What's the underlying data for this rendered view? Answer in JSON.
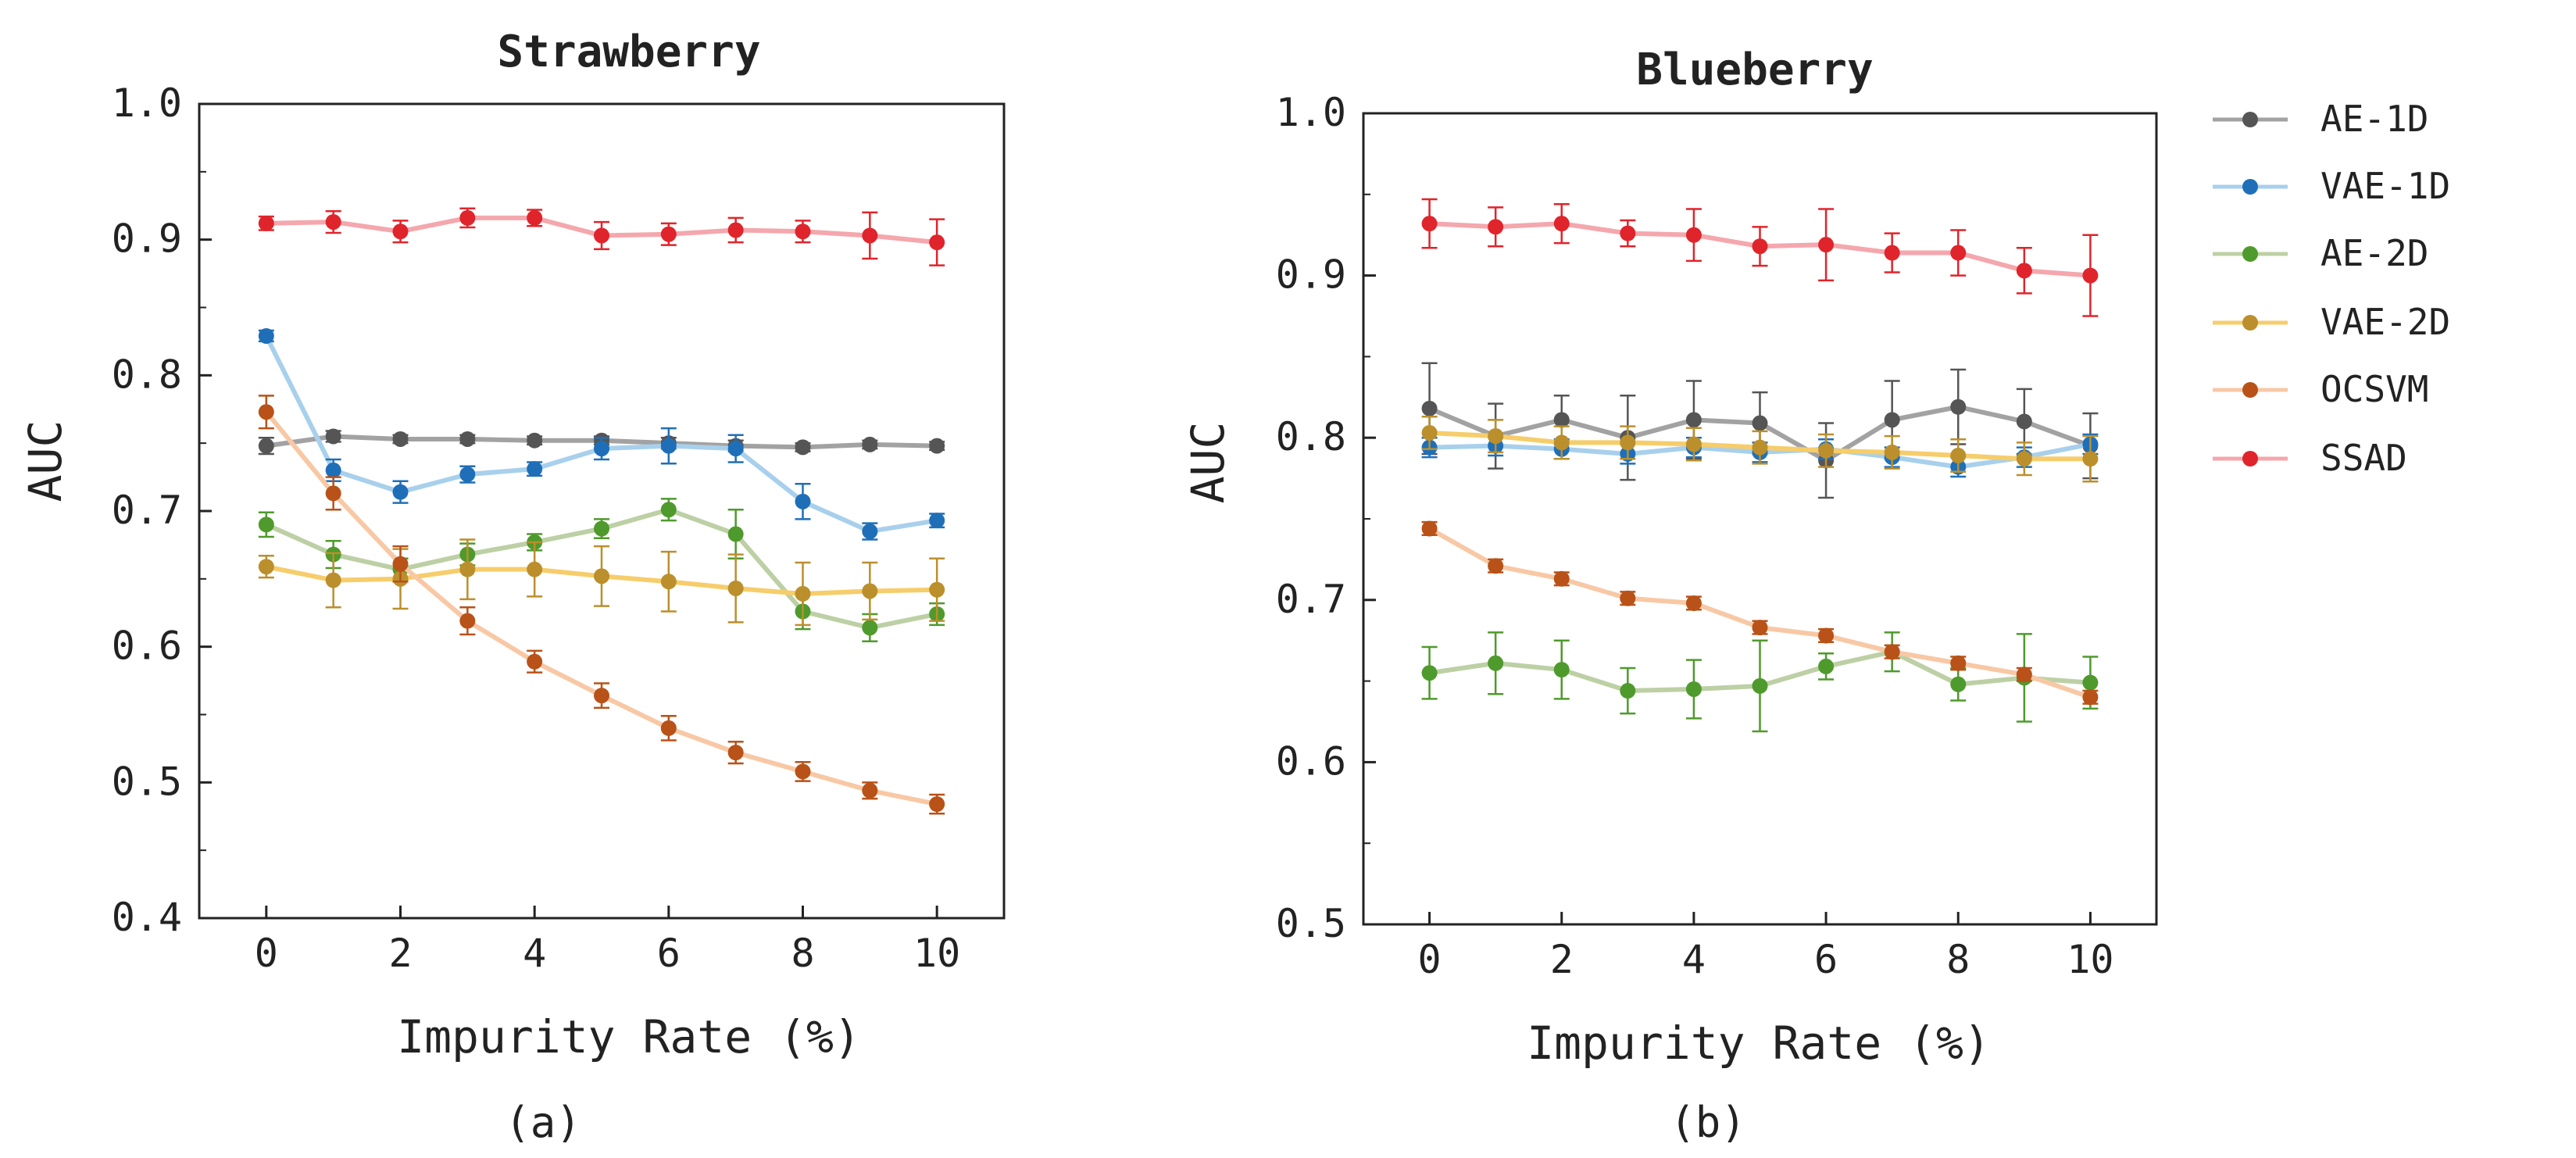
{
  "chart_data": [
    {
      "type": "line",
      "title": "Strawberry",
      "xlabel": "Impurity Rate (%)",
      "ylabel": "AUC",
      "caption": "(a)",
      "xlim": [
        -1,
        11
      ],
      "ylim": [
        0.4,
        1.0
      ],
      "xticks": [
        "0",
        "2",
        "4",
        "6",
        "8",
        "10"
      ],
      "yticks": [
        "0.4",
        "0.5",
        "0.6",
        "0.7",
        "0.8",
        "0.9",
        "1.0"
      ],
      "x": [
        0,
        1,
        2,
        3,
        4,
        5,
        6,
        7,
        8,
        9,
        10
      ],
      "series": [
        {
          "name": "AE-1D",
          "values": [
            0.748,
            0.755,
            0.753,
            0.753,
            0.752,
            0.752,
            0.75,
            0.748,
            0.747,
            0.749,
            0.748
          ],
          "errors": [
            0.006,
            0.004,
            0.003,
            0.003,
            0.003,
            0.003,
            0.004,
            0.004,
            0.003,
            0.003,
            0.003
          ]
        },
        {
          "name": "VAE-1D",
          "values": [
            0.829,
            0.73,
            0.714,
            0.727,
            0.731,
            0.746,
            0.748,
            0.746,
            0.707,
            0.685,
            0.693
          ],
          "errors": [
            0.004,
            0.008,
            0.008,
            0.006,
            0.005,
            0.008,
            0.013,
            0.01,
            0.013,
            0.006,
            0.005
          ]
        },
        {
          "name": "AE-2D",
          "values": [
            0.69,
            0.668,
            0.657,
            0.668,
            0.677,
            0.687,
            0.701,
            0.683,
            0.626,
            0.614,
            0.624
          ],
          "errors": [
            0.009,
            0.01,
            0.008,
            0.008,
            0.006,
            0.007,
            0.008,
            0.018,
            0.013,
            0.01,
            0.008
          ]
        },
        {
          "name": "VAE-2D",
          "values": [
            0.659,
            0.649,
            0.65,
            0.657,
            0.657,
            0.652,
            0.648,
            0.643,
            0.639,
            0.641,
            0.642
          ],
          "errors": [
            0.008,
            0.02,
            0.022,
            0.022,
            0.02,
            0.022,
            0.022,
            0.025,
            0.023,
            0.021,
            0.023
          ]
        },
        {
          "name": "OCSVM",
          "values": [
            0.773,
            0.713,
            0.661,
            0.619,
            0.589,
            0.564,
            0.54,
            0.522,
            0.508,
            0.494,
            0.484
          ],
          "errors": [
            0.012,
            0.012,
            0.013,
            0.01,
            0.008,
            0.009,
            0.009,
            0.008,
            0.007,
            0.006,
            0.007
          ]
        },
        {
          "name": "SSAD",
          "values": [
            0.912,
            0.913,
            0.906,
            0.916,
            0.916,
            0.903,
            0.904,
            0.907,
            0.906,
            0.903,
            0.898
          ],
          "errors": [
            0.005,
            0.008,
            0.008,
            0.007,
            0.006,
            0.01,
            0.008,
            0.009,
            0.008,
            0.017,
            0.017
          ]
        }
      ]
    },
    {
      "type": "line",
      "title": "Blueberry",
      "xlabel": "Impurity Rate (%)",
      "ylabel": "AUC",
      "caption": "(b)",
      "xlim": [
        -1,
        11
      ],
      "ylim": [
        0.5,
        1.0
      ],
      "xticks": [
        "0",
        "2",
        "4",
        "6",
        "8",
        "10"
      ],
      "yticks": [
        "0.5",
        "0.6",
        "0.7",
        "0.8",
        "0.9",
        "1.0"
      ],
      "x": [
        0,
        1,
        2,
        3,
        4,
        5,
        6,
        7,
        8,
        9,
        10
      ],
      "series": [
        {
          "name": "AE-1D",
          "values": [
            0.818,
            0.801,
            0.811,
            0.8,
            0.811,
            0.809,
            0.786,
            0.811,
            0.819,
            0.81,
            0.795
          ],
          "errors": [
            0.028,
            0.02,
            0.015,
            0.026,
            0.024,
            0.019,
            0.023,
            0.024,
            0.023,
            0.02,
            0.02
          ]
        },
        {
          "name": "VAE-1D",
          "values": [
            0.794,
            0.795,
            0.793,
            0.79,
            0.794,
            0.791,
            0.793,
            0.788,
            0.782,
            0.788,
            0.796
          ],
          "errors": [
            0.006,
            0.006,
            0.006,
            0.006,
            0.006,
            0.006,
            0.006,
            0.006,
            0.006,
            0.006,
            0.006
          ]
        },
        {
          "name": "AE-2D",
          "values": [
            0.655,
            0.661,
            0.657,
            0.644,
            0.645,
            0.647,
            0.659,
            0.668,
            0.648,
            0.652,
            0.649
          ],
          "errors": [
            0.016,
            0.019,
            0.018,
            0.014,
            0.018,
            0.028,
            0.008,
            0.012,
            0.01,
            0.027,
            0.016
          ]
        },
        {
          "name": "VAE-2D",
          "values": [
            0.803,
            0.801,
            0.797,
            0.797,
            0.796,
            0.794,
            0.792,
            0.791,
            0.789,
            0.787,
            0.787
          ],
          "errors": [
            0.01,
            0.01,
            0.01,
            0.01,
            0.01,
            0.01,
            0.01,
            0.01,
            0.01,
            0.01,
            0.014
          ]
        },
        {
          "name": "OCSVM",
          "values": [
            0.744,
            0.721,
            0.713,
            0.701,
            0.698,
            0.683,
            0.678,
            0.668,
            0.661,
            0.654,
            0.64
          ],
          "errors": [
            0.004,
            0.004,
            0.004,
            0.004,
            0.004,
            0.004,
            0.004,
            0.004,
            0.004,
            0.004,
            0.004
          ]
        },
        {
          "name": "SSAD",
          "values": [
            0.932,
            0.93,
            0.932,
            0.926,
            0.925,
            0.918,
            0.919,
            0.914,
            0.914,
            0.903,
            0.9
          ],
          "errors": [
            0.015,
            0.012,
            0.012,
            0.008,
            0.016,
            0.012,
            0.022,
            0.012,
            0.014,
            0.014,
            0.025
          ]
        }
      ]
    }
  ],
  "legend": {
    "items": [
      {
        "name": "AE-1D",
        "line_color": "#a2a2a2",
        "marker_color": "#555555"
      },
      {
        "name": "VAE-1D",
        "line_color": "#a8d0ec",
        "marker_color": "#1f6fb8"
      },
      {
        "name": "AE-2D",
        "line_color": "#bdd0a5",
        "marker_color": "#4f9a2c"
      },
      {
        "name": "VAE-2D",
        "line_color": "#f6cd6b",
        "marker_color": "#bb8f2c"
      },
      {
        "name": "OCSVM",
        "line_color": "#f8c8a5",
        "marker_color": "#b85218"
      },
      {
        "name": "SSAD",
        "line_color": "#f4a7ad",
        "marker_color": "#e0242b"
      }
    ]
  }
}
